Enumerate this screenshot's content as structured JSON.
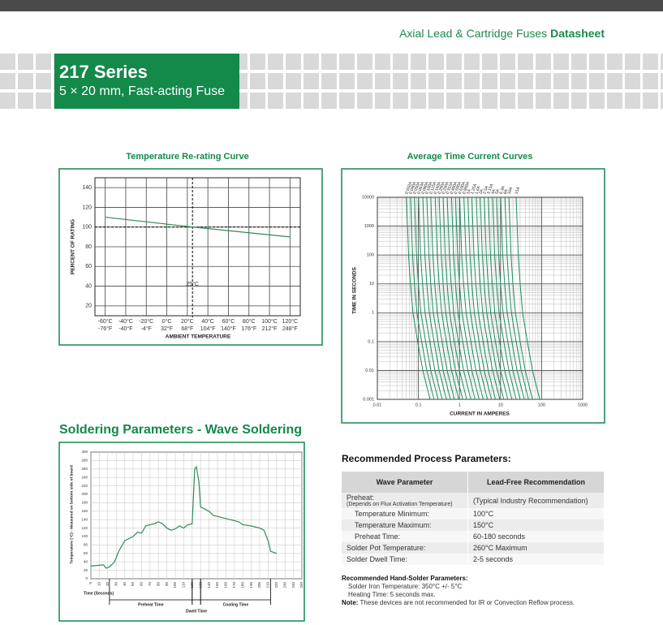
{
  "header": {
    "product_line": "Axial Lead & Cartridge Fuses",
    "doc_type": "Datasheet",
    "series": "217 Series",
    "subtitle": "5 × 20 mm, Fast-acting Fuse"
  },
  "chart_data": [
    {
      "type": "line",
      "title": "Temperature Re-rating Curve",
      "y_label": "PERCENT OF RATING",
      "x_label": "AMBIENT TEMPERATURE",
      "x": [
        -60,
        25,
        120
      ],
      "values": [
        110,
        100,
        90
      ],
      "color": "#2e8b57",
      "xlim": [
        -70,
        130
      ],
      "ylim": [
        10,
        150
      ],
      "xticks": [
        {
          "value": -60,
          "label": "-60°C"
        },
        {
          "value": -40,
          "label": "-40°C"
        },
        {
          "value": -20,
          "label": "-20°C"
        },
        {
          "value": 0,
          "label": "0°C"
        },
        {
          "value": 20,
          "label": "20°C"
        },
        {
          "value": 40,
          "label": "40°C"
        },
        {
          "value": 60,
          "label": "60°C"
        },
        {
          "value": 80,
          "label": "80°C"
        },
        {
          "value": 100,
          "label": "100°C"
        },
        {
          "value": 120,
          "label": "120°C"
        }
      ],
      "xtick_labels_f": [
        "-76°F",
        "-40°F",
        "-4°F",
        "32°F",
        "68°F",
        "104°F",
        "140°F",
        "176°F",
        "212°F",
        "248°F"
      ],
      "yticks": [
        20,
        40,
        60,
        80,
        100,
        120,
        140
      ],
      "grid": true,
      "ref_x": 25,
      "ref_y": 100,
      "annotation": {
        "text": "25°C",
        "x": 25,
        "y": 42
      }
    },
    {
      "type": "curves",
      "title": "Average Time Current Curves",
      "y_label": "TIME IN SECONDS",
      "x_label": "CURRENT IN AMPERES",
      "xscale": "log",
      "yscale": "log",
      "xlim": [
        0.01,
        1000
      ],
      "ylim": [
        0.001,
        10000
      ],
      "color": "#1a8f5c",
      "grid": true,
      "xticks": [
        0.01,
        0.1,
        1,
        10,
        100,
        1000
      ],
      "yticks": [
        10000,
        1000,
        100,
        10,
        1,
        0.1,
        0.01,
        0.001
      ],
      "times": [
        10000,
        100,
        10,
        1,
        0.1,
        0.01,
        0.001
      ],
      "series": [
        {
          "name": "0.032A",
          "values": [
            0.0512,
            0.0576,
            0.064,
            0.0736,
            0.096,
            0.128,
            0.192
          ]
        },
        {
          "name": "0.040A",
          "values": [
            0.064,
            0.072,
            0.08,
            0.092,
            0.12,
            0.16,
            0.24
          ]
        },
        {
          "name": "0.050A",
          "values": [
            0.08,
            0.09,
            0.1,
            0.115,
            0.15,
            0.2,
            0.3
          ]
        },
        {
          "name": "0.063A",
          "values": [
            0.101,
            0.113,
            0.126,
            0.145,
            0.189,
            0.252,
            0.378
          ]
        },
        {
          "name": "0.080A",
          "values": [
            0.128,
            0.144,
            0.16,
            0.184,
            0.24,
            0.32,
            0.48
          ]
        },
        {
          "name": "0.100A",
          "values": [
            0.16,
            0.18,
            0.2,
            0.23,
            0.3,
            0.4,
            0.6
          ]
        },
        {
          "name": "0.125A",
          "values": [
            0.2,
            0.225,
            0.25,
            0.288,
            0.375,
            0.5,
            0.75
          ]
        },
        {
          "name": "0.160A",
          "values": [
            0.256,
            0.288,
            0.32,
            0.368,
            0.48,
            0.64,
            0.96
          ]
        },
        {
          "name": "0.200A",
          "values": [
            0.32,
            0.36,
            0.4,
            0.46,
            0.6,
            0.8,
            1.2
          ]
        },
        {
          "name": "0.250A",
          "values": [
            0.4,
            0.45,
            0.5,
            0.575,
            0.75,
            1,
            1.5
          ]
        },
        {
          "name": "0.315A",
          "values": [
            0.504,
            0.567,
            0.63,
            0.725,
            0.945,
            1.26,
            1.89
          ]
        },
        {
          "name": "0.400A",
          "values": [
            0.64,
            0.72,
            0.8,
            0.92,
            1.2,
            1.6,
            2.4
          ]
        },
        {
          "name": "0.500A",
          "values": [
            0.8,
            0.9,
            1,
            1.15,
            1.5,
            2,
            3
          ]
        },
        {
          "name": "0.630A",
          "values": [
            1.01,
            1.13,
            1.26,
            1.45,
            1.89,
            2.52,
            3.78
          ]
        },
        {
          "name": "0.800A",
          "values": [
            1.28,
            1.44,
            1.6,
            1.84,
            2.4,
            3.2,
            4.8
          ]
        },
        {
          "name": "1A",
          "values": [
            1.6,
            1.8,
            2,
            2.3,
            3,
            4,
            6
          ]
        },
        {
          "name": "1.25A",
          "values": [
            2,
            2.25,
            2.5,
            2.88,
            3.75,
            5,
            7.5
          ]
        },
        {
          "name": "1.6A",
          "values": [
            2.56,
            2.88,
            3.2,
            3.68,
            4.8,
            6.4,
            9.6
          ]
        },
        {
          "name": "2A",
          "values": [
            3.2,
            3.6,
            4,
            4.6,
            6,
            8,
            12
          ]
        },
        {
          "name": "2.5A",
          "values": [
            4,
            4.5,
            5,
            5.75,
            7.5,
            10,
            15
          ]
        },
        {
          "name": "3.15A",
          "values": [
            5.04,
            5.67,
            6.3,
            7.25,
            9.45,
            12.6,
            18.9
          ]
        },
        {
          "name": "4A",
          "values": [
            6.4,
            7.2,
            8,
            9.2,
            12,
            16,
            24
          ]
        },
        {
          "name": "5A",
          "values": [
            8,
            9,
            10,
            11.5,
            15,
            20,
            30
          ]
        },
        {
          "name": "6.3A",
          "values": [
            10.1,
            11.3,
            12.6,
            14.5,
            18.9,
            25.2,
            37.8
          ]
        },
        {
          "name": "8A",
          "values": [
            12.8,
            14.4,
            16,
            18.4,
            24,
            32,
            48
          ]
        },
        {
          "name": "10A",
          "values": [
            16,
            18,
            20,
            23,
            30,
            40,
            60
          ]
        },
        {
          "name": "15A",
          "values": [
            24,
            27,
            30,
            34.5,
            45,
            60,
            90
          ]
        }
      ]
    },
    {
      "type": "line",
      "title": "Soldering Parameters - Wave Soldering",
      "y_label": "Temperature (°C) - Measured on bottom side of board",
      "x_label": "Time (Seconds)",
      "color": "#2e8b57",
      "grid": true,
      "xlim": [
        0,
        250
      ],
      "ylim": [
        0,
        300
      ],
      "x": [
        0,
        10,
        15,
        18,
        22,
        28,
        33,
        40,
        45,
        50,
        55,
        60,
        65,
        70,
        75,
        80,
        85,
        90,
        95,
        100,
        105,
        110,
        115,
        120,
        123,
        125,
        128,
        130,
        135,
        140,
        145,
        155,
        165,
        175,
        180,
        190,
        200,
        205,
        210,
        213,
        220
      ],
      "values": [
        30,
        32,
        33,
        25,
        28,
        40,
        65,
        90,
        95,
        100,
        110,
        108,
        125,
        128,
        130,
        135,
        130,
        120,
        115,
        118,
        125,
        120,
        128,
        130,
        260,
        265,
        230,
        170,
        165,
        160,
        150,
        145,
        140,
        135,
        128,
        125,
        120,
        115,
        90,
        65,
        60
      ],
      "xticks": [
        0,
        10,
        20,
        30,
        40,
        50,
        60,
        70,
        80,
        90,
        100,
        110,
        120,
        130,
        140,
        150,
        160,
        170,
        180,
        190,
        200,
        210,
        220,
        230,
        240,
        250
      ],
      "yticks": [
        0,
        20,
        40,
        60,
        80,
        100,
        120,
        140,
        160,
        180,
        200,
        220,
        240,
        260,
        280,
        300
      ],
      "spans": [
        {
          "label": "Preheat Time",
          "start": 22,
          "end": 120
        },
        {
          "label": "Dwell Time",
          "start": 120,
          "end": 130
        },
        {
          "label": "Cooling Time",
          "start": 130,
          "end": 213
        }
      ]
    }
  ],
  "process": {
    "title": "Recommended Process Parameters:",
    "columns": [
      "Wave Parameter",
      "Lead-Free Recommendation"
    ],
    "rows": [
      {
        "param": "Preheat:",
        "param_note": "(Depends on Flux Activation Temperature)",
        "value": "(Typical Industry Recommendation)"
      },
      {
        "param": "Temperature Minimum:",
        "value": "100°C",
        "indent": true
      },
      {
        "param": "Temperature Maximum:",
        "value": "150°C",
        "indent": true
      },
      {
        "param": "Preheat Time:",
        "value": "60-180 seconds",
        "indent": true
      },
      {
        "param": "Solder Pot Temperature:",
        "value": "260°C Maximum"
      },
      {
        "param": "Solder Dwell Time:",
        "value": "2-5 seconds"
      }
    ]
  },
  "hand_solder": {
    "title": "Recommended Hand-Solder Parameters:",
    "lines": [
      "Solder Iron Temperature: 350°C +/- 5°C",
      "Heating Time: 5 seconds max."
    ]
  },
  "note": {
    "label": "Note:",
    "text": "These devices are not recommended for IR or Convection Reflow process."
  }
}
